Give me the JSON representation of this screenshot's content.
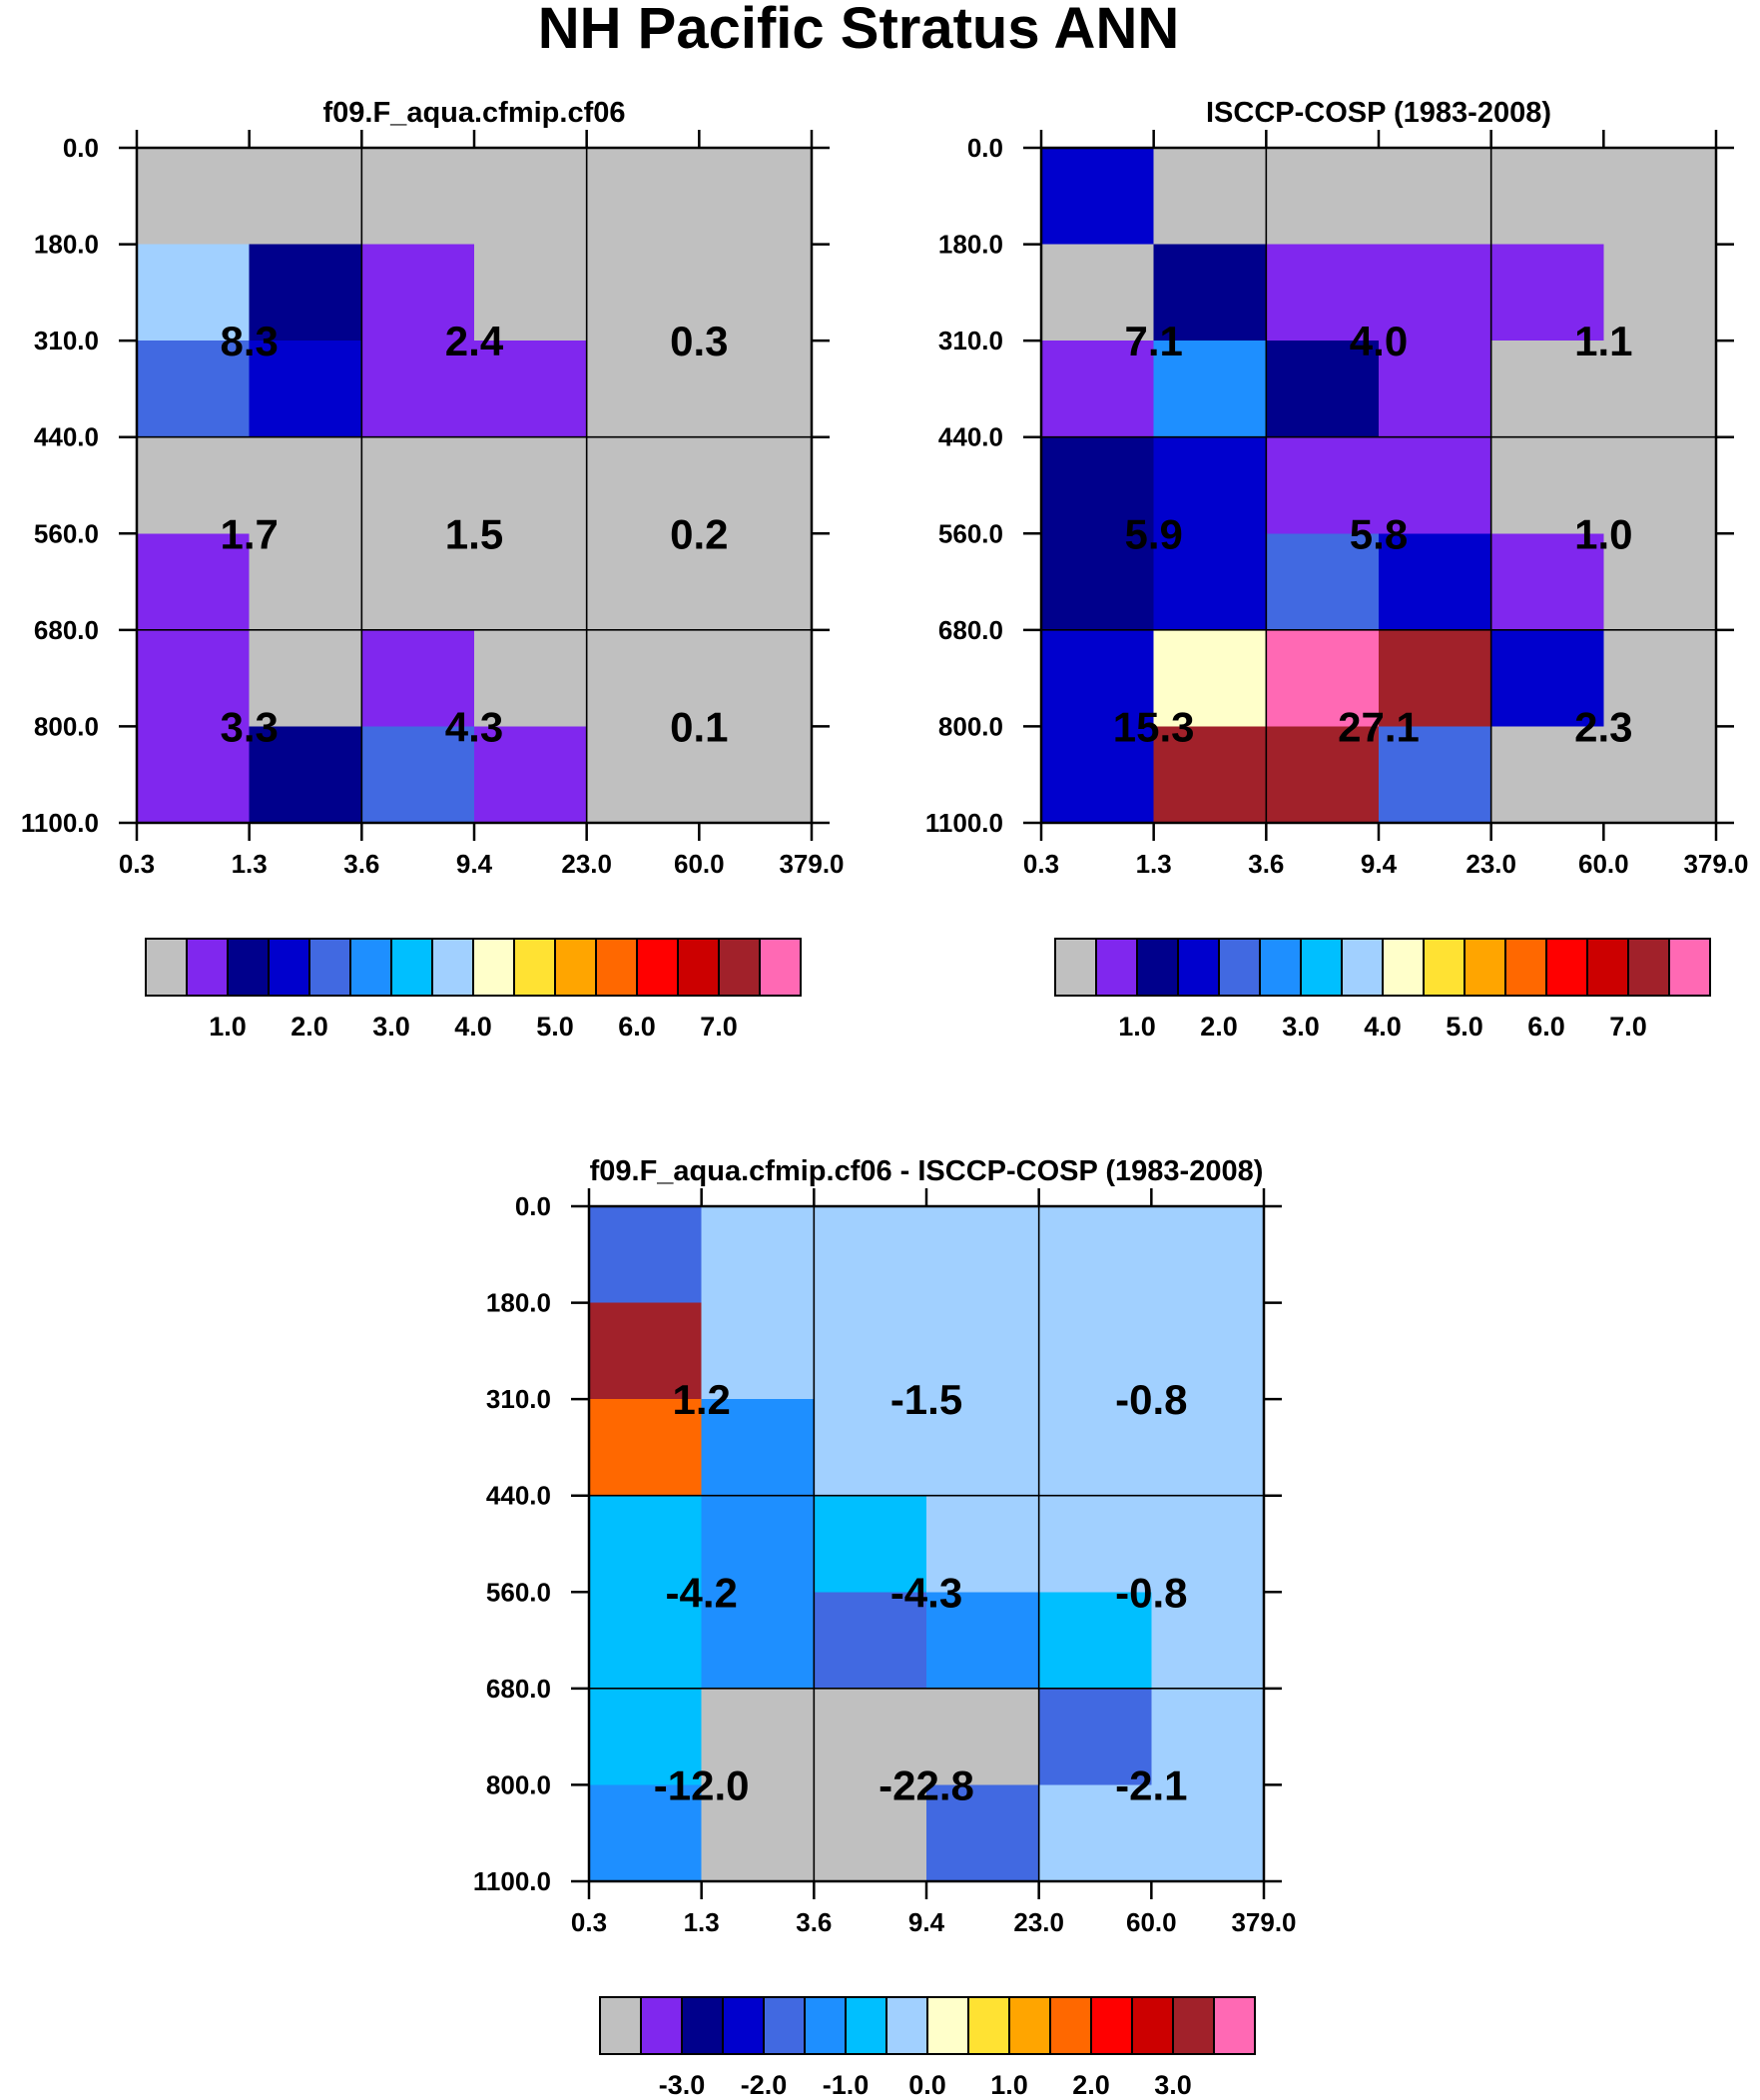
{
  "chart_data": {
    "type": "heatmap",
    "title": "NH Pacific Stratus ANN",
    "y_ticks": [
      "0.0",
      "180.0",
      "310.0",
      "440.0",
      "560.0",
      "680.0",
      "800.0",
      "1100.0"
    ],
    "x_ticks": [
      "0.3",
      "1.3",
      "3.6",
      "9.4",
      "23.0",
      "60.0",
      "379.0"
    ],
    "panels": [
      {
        "title": "f09.F_aqua.cfmip.cf06",
        "cells": [
          [
            0,
            0,
            0,
            0,
            0,
            0
          ],
          [
            7,
            2,
            1,
            0,
            0,
            0
          ],
          [
            4,
            3,
            1,
            1,
            0,
            0
          ],
          [
            0,
            0,
            0,
            0,
            0,
            0
          ],
          [
            1,
            0,
            0,
            0,
            0,
            0
          ],
          [
            1,
            0,
            1,
            0,
            0,
            0
          ],
          [
            1,
            2,
            4,
            1,
            0,
            0
          ]
        ],
        "labels": [
          [
            "8.3",
            "2.4",
            "0.3"
          ],
          [
            "1.7",
            "1.5",
            "0.2"
          ],
          [
            "3.3",
            "4.3",
            "0.1"
          ]
        ],
        "colorbar": {
          "colors": [
            "#c0c0c0",
            "#8027ee",
            "#00008c",
            "#0000cd",
            "#4169e1",
            "#1e8fff",
            "#00bfff",
            "#a1d0ff",
            "#ffffca",
            "#ffe233",
            "#ffa500",
            "#ff6800",
            "#ff0000",
            "#cc0000",
            "#a1212a",
            "#ff69b4"
          ],
          "labels": [
            "1.0",
            "2.0",
            "3.0",
            "4.0",
            "5.0",
            "6.0",
            "7.0"
          ]
        }
      },
      {
        "title": "ISCCP-COSP (1983-2008)",
        "cells": [
          [
            3,
            0,
            0,
            0,
            0,
            0
          ],
          [
            0,
            2,
            1,
            1,
            1,
            0
          ],
          [
            1,
            5,
            2,
            1,
            0,
            0
          ],
          [
            2,
            3,
            1,
            1,
            0,
            0
          ],
          [
            2,
            3,
            4,
            3,
            1,
            0
          ],
          [
            3,
            8,
            15,
            14,
            3,
            0
          ],
          [
            3,
            14,
            14,
            4,
            0,
            0
          ]
        ],
        "labels": [
          [
            "7.1",
            "4.0",
            "1.1"
          ],
          [
            "5.9",
            "5.8",
            "1.0"
          ],
          [
            "15.3",
            "27.1",
            "2.3"
          ]
        ],
        "colorbar": {
          "colors": [
            "#c0c0c0",
            "#8027ee",
            "#00008c",
            "#0000cd",
            "#4169e1",
            "#1e8fff",
            "#00bfff",
            "#a1d0ff",
            "#ffffca",
            "#ffe233",
            "#ffa500",
            "#ff6800",
            "#ff0000",
            "#cc0000",
            "#a1212a",
            "#ff69b4"
          ],
          "labels": [
            "1.0",
            "2.0",
            "3.0",
            "4.0",
            "5.0",
            "6.0",
            "7.0"
          ]
        }
      },
      {
        "title": "f09.F_aqua.cfmip.cf06 - ISCCP-COSP (1983-2008)",
        "cells": [
          [
            4,
            7,
            7,
            7,
            7,
            7
          ],
          [
            14,
            7,
            7,
            7,
            7,
            7
          ],
          [
            11,
            5,
            7,
            7,
            7,
            7
          ],
          [
            6,
            5,
            6,
            7,
            7,
            7
          ],
          [
            6,
            5,
            4,
            5,
            6,
            7
          ],
          [
            6,
            0,
            0,
            0,
            4,
            7
          ],
          [
            5,
            0,
            0,
            4,
            7,
            7
          ]
        ],
        "labels": [
          [
            "1.2",
            "-1.5",
            "-0.8"
          ],
          [
            "-4.2",
            "-4.3",
            "-0.8"
          ],
          [
            "-12.0",
            "-22.8",
            "-2.1"
          ]
        ],
        "colorbar": {
          "colors": [
            "#c0c0c0",
            "#8027ee",
            "#00008c",
            "#0000cd",
            "#4169e1",
            "#1e8fff",
            "#00bfff",
            "#a1d0ff",
            "#ffffca",
            "#ffe233",
            "#ffa500",
            "#ff6800",
            "#ff0000",
            "#cc0000",
            "#a1212a",
            "#ff69b4"
          ],
          "labels": [
            "-3.0",
            "-2.0",
            "-1.0",
            "0.0",
            "1.0",
            "2.0",
            "3.0"
          ]
        }
      }
    ]
  }
}
